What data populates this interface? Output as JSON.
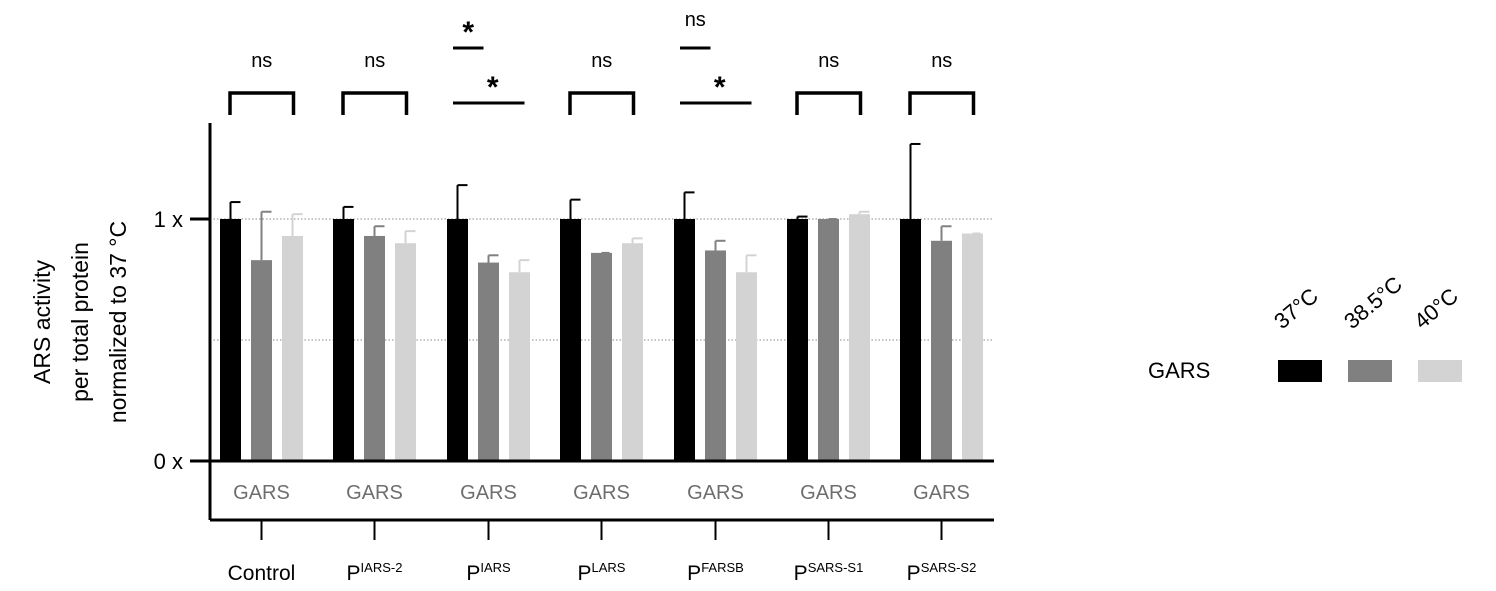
{
  "chart_data": {
    "type": "bar",
    "ylabel_lines": [
      "ARS activity",
      "per total protein",
      "normalized to 37 °C"
    ],
    "yticks": [
      {
        "value": 0,
        "label": "0 x"
      },
      {
        "value": 1,
        "label": "1 x"
      }
    ],
    "ylim": [
      0,
      1.4
    ],
    "grid_lines": [
      0.5,
      1.0
    ],
    "categories": [
      {
        "main": "Control",
        "sup": ""
      },
      {
        "main": "P",
        "sup": "IARS-2"
      },
      {
        "main": "P",
        "sup": "IARS"
      },
      {
        "main": "P",
        "sup": "LARS"
      },
      {
        "main": "P",
        "sup": "FARSB"
      },
      {
        "main": "P",
        "sup": "SARS-S1"
      },
      {
        "main": "P",
        "sup": "SARS-S2"
      }
    ],
    "inner_label": "GARS",
    "series": [
      {
        "name": "37°C",
        "color": "#000000",
        "values": [
          1.0,
          1.0,
          1.0,
          1.0,
          1.0,
          1.0,
          1.0
        ],
        "errors": [
          0.07,
          0.05,
          0.14,
          0.08,
          0.11,
          0.01,
          0.31
        ]
      },
      {
        "name": "38.5°C",
        "color": "#808080",
        "values": [
          0.83,
          0.93,
          0.82,
          0.86,
          0.87,
          1.0,
          0.91
        ],
        "errors": [
          0.2,
          0.04,
          0.03,
          0.0,
          0.04,
          0.0,
          0.06
        ]
      },
      {
        "name": "40°C",
        "color": "#d3d3d3",
        "values": [
          0.93,
          0.9,
          0.78,
          0.9,
          0.78,
          1.02,
          0.94
        ],
        "errors": [
          0.09,
          0.05,
          0.05,
          0.02,
          0.07,
          0.01,
          0.0
        ]
      }
    ],
    "significance": [
      {
        "category": 0,
        "type": "bracket",
        "label": "ns"
      },
      {
        "category": 1,
        "type": "bracket",
        "label": "ns"
      },
      {
        "category": 2,
        "type": "lines",
        "labels": [
          "*",
          "*"
        ]
      },
      {
        "category": 3,
        "type": "bracket",
        "label": "ns"
      },
      {
        "category": 4,
        "type": "lines",
        "labels": [
          "ns",
          "*"
        ]
      },
      {
        "category": 5,
        "type": "bracket",
        "label": "ns"
      },
      {
        "category": 6,
        "type": "bracket",
        "label": "ns"
      }
    ],
    "legend": {
      "row_label": "GARS",
      "placement": "right"
    }
  }
}
